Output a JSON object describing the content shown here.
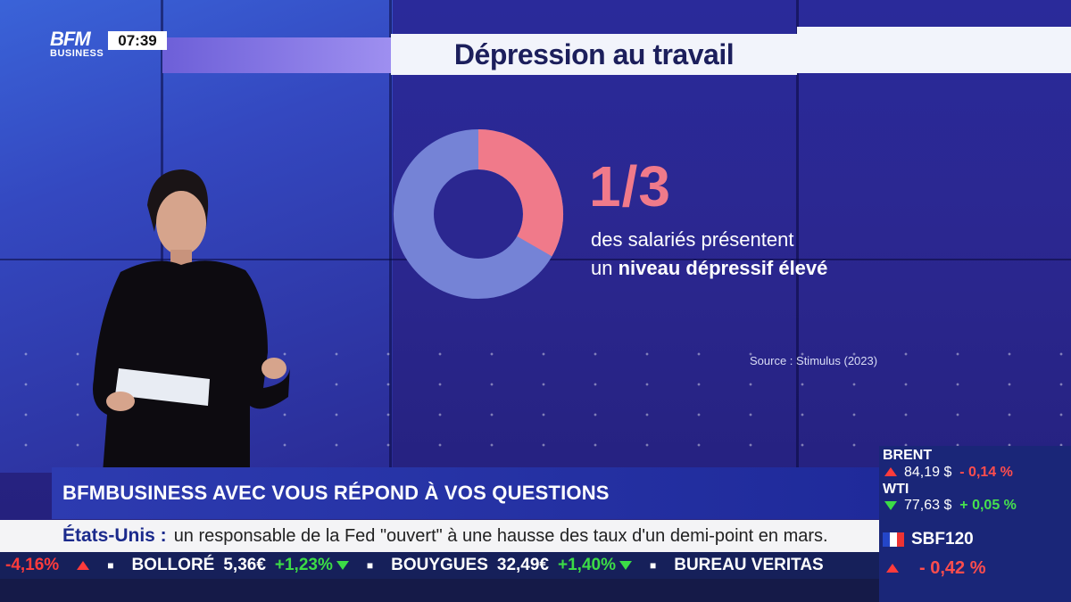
{
  "channel": {
    "logo_line1": "BFM",
    "logo_line2": "BUSINESS",
    "time": "07:39"
  },
  "graphic": {
    "title": "Dépression au travail",
    "stat": "1/3",
    "stat_line1": "des salariés présentent",
    "stat_line2_a": "un ",
    "stat_line2_b": "niveau dépressif élevé",
    "source": "Source : Stimulus (2023)",
    "donut_fraction": 0.333,
    "colors": {
      "highlight": "#f07a8a",
      "rest": "#7583d6"
    }
  },
  "lower_third": {
    "text": "BFMBUSINESS AVEC VOUS RÉPOND À VOS QUESTIONS"
  },
  "news": {
    "headline_label": "États-Unis :",
    "headline_text": "un responsable de la Fed \"ouvert\" à une hausse des taux d'un demi-point en mars."
  },
  "ticker": [
    {
      "name": "",
      "price": "",
      "change": "-4,16%",
      "dir": "neg"
    },
    {
      "name": "BOLLORÉ",
      "price": "5,36€",
      "change": "+1,23%",
      "dir": "pos"
    },
    {
      "name": "BOUYGUES",
      "price": "32,49€",
      "change": "+1,40%",
      "dir": "pos"
    },
    {
      "name": "BUREAU VERITAS",
      "price": "",
      "change": "",
      "dir": ""
    }
  ],
  "markets": {
    "brent": {
      "label": "BRENT",
      "value": "84,19 $",
      "change": "- 0,14 %",
      "dir": "neg"
    },
    "wti": {
      "label": "WTI",
      "value": "77,63 $",
      "change": "+ 0,05 %",
      "dir": "pos"
    },
    "sbf": {
      "label": "SBF120",
      "change": "- 0,42 %",
      "dir": "neg"
    }
  }
}
